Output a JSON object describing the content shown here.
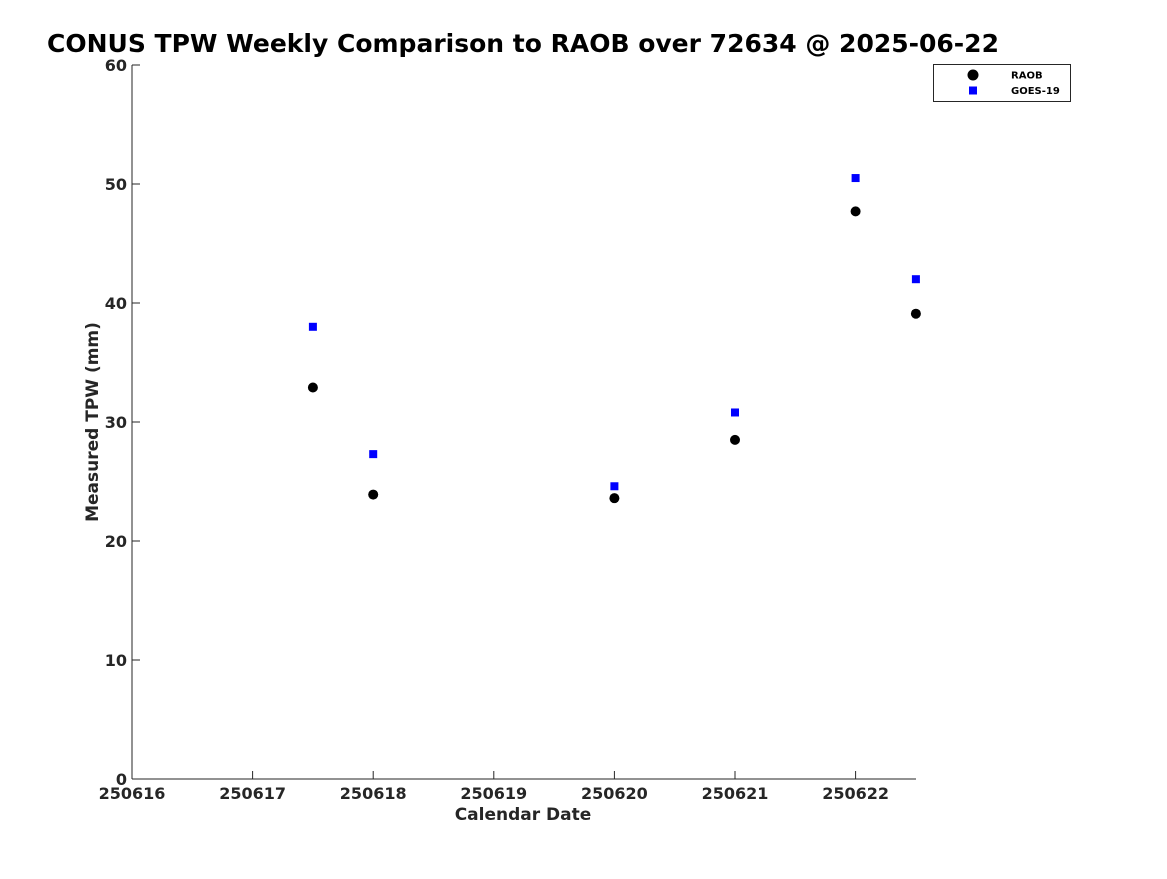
{
  "chart_data": {
    "type": "scatter",
    "title": "CONUS TPW Weekly Comparison to RAOB over 72634 @ 2025-06-22",
    "xlabel": "Calendar Date",
    "ylabel": "Measured TPW (mm)",
    "xlim": [
      250616,
      250622.5
    ],
    "ylim": [
      0,
      60
    ],
    "x_ticks": [
      250616,
      250617,
      250618,
      250619,
      250620,
      250621,
      250622
    ],
    "x_tick_labels": [
      "250616",
      "250617",
      "250618",
      "250619",
      "250620",
      "250621",
      "250622"
    ],
    "y_ticks": [
      0,
      10,
      20,
      30,
      40,
      50,
      60
    ],
    "y_tick_labels": [
      "0",
      "10",
      "20",
      "30",
      "40",
      "50",
      "60"
    ],
    "grid": false,
    "legend_position": "top-right",
    "series": [
      {
        "name": "RAOB",
        "marker": "circle",
        "color": "#000000",
        "points": [
          {
            "x": 250617.5,
            "y": 32.9
          },
          {
            "x": 250618.0,
            "y": 23.9
          },
          {
            "x": 250620.0,
            "y": 23.6
          },
          {
            "x": 250621.0,
            "y": 28.5
          },
          {
            "x": 250622.0,
            "y": 47.7
          },
          {
            "x": 250622.5,
            "y": 39.1
          }
        ]
      },
      {
        "name": "GOES-19",
        "marker": "square",
        "color": "#0000ff",
        "points": [
          {
            "x": 250617.5,
            "y": 38.0
          },
          {
            "x": 250618.0,
            "y": 27.3
          },
          {
            "x": 250620.0,
            "y": 24.6
          },
          {
            "x": 250621.0,
            "y": 30.8
          },
          {
            "x": 250622.0,
            "y": 50.5
          },
          {
            "x": 250622.5,
            "y": 42.0
          }
        ]
      }
    ]
  }
}
